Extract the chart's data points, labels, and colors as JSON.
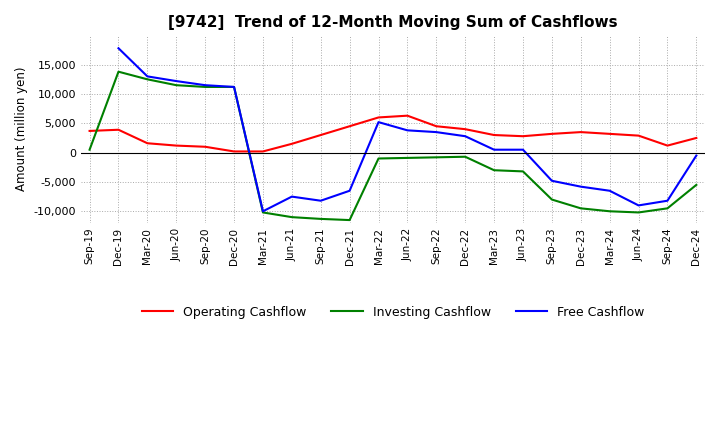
{
  "title": "[9742]  Trend of 12-Month Moving Sum of Cashflows",
  "ylabel": "Amount (million yen)",
  "ylim": [
    -12000,
    20000
  ],
  "yticks": [
    -10000,
    -5000,
    0,
    5000,
    10000,
    15000
  ],
  "labels": [
    "Sep-19",
    "Dec-19",
    "Mar-20",
    "Jun-20",
    "Sep-20",
    "Dec-20",
    "Mar-21",
    "Jun-21",
    "Sep-21",
    "Dec-21",
    "Mar-22",
    "Jun-22",
    "Sep-22",
    "Dec-22",
    "Mar-23",
    "Jun-23",
    "Sep-23",
    "Dec-23",
    "Mar-24",
    "Jun-24",
    "Sep-24",
    "Dec-24"
  ],
  "operating": [
    3700,
    3900,
    1600,
    1200,
    1000,
    200,
    200,
    1500,
    3000,
    4500,
    6000,
    6300,
    4500,
    4000,
    3000,
    2800,
    3200,
    3500,
    3200,
    2900,
    1200,
    2500
  ],
  "investing": [
    500,
    13800,
    12500,
    11500,
    11200,
    11200,
    -10200,
    -11000,
    -11300,
    -11500,
    -1000,
    -900,
    -800,
    -700,
    -3000,
    -3200,
    -8000,
    -9500,
    -10000,
    -10200,
    -9500,
    -5500
  ],
  "free": [
    null,
    17800,
    13000,
    12200,
    11500,
    11200,
    -10000,
    -7500,
    -8200,
    -6500,
    5200,
    3800,
    3500,
    2800,
    500,
    500,
    -4800,
    -5800,
    -6500,
    -9000,
    -8200,
    -500
  ],
  "operating_color": "#ff0000",
  "investing_color": "#008000",
  "free_color": "#0000ff",
  "grid_color": "#aaaaaa",
  "background_color": "#ffffff",
  "legend_labels": [
    "Operating Cashflow",
    "Investing Cashflow",
    "Free Cashflow"
  ]
}
